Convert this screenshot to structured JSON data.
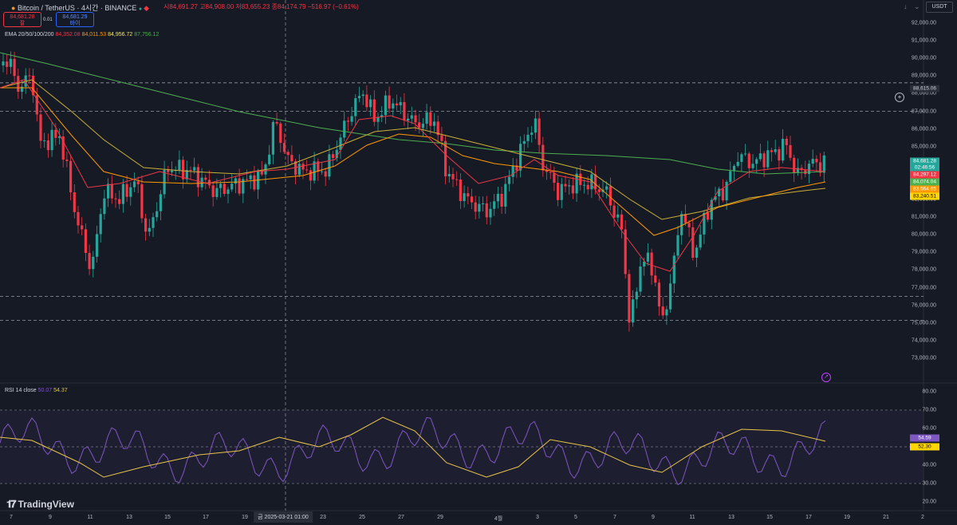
{
  "header": {
    "title": "Bitcoin / TetherUS · 4시간 · BINANCE",
    "ohlc_open": "시84,691.27",
    "ohlc_high": "고84,908.00",
    "ohlc_low": "저83,655.23",
    "ohlc_close": "종84,174.79",
    "change": "−516.97 (−0.61%)",
    "sell_price": "84,681.28",
    "sell_label": "팔",
    "buy_price": "84,681.29",
    "buy_label": "바이",
    "spread": "0.01",
    "currency": "USDT"
  },
  "indicators": {
    "ema_label": "EMA 20/50/100/200",
    "ema20": "84,352.08",
    "ema50": "84,011.53",
    "ema100": "84,956.72",
    "ema200": "87,756.12",
    "rsi_label": "RSI 14 close",
    "rsi_value": "50.07",
    "rsi_ma": "54.37"
  },
  "price_axis": [
    "92,000.00",
    "91,000.00",
    "90,000.00",
    "89,000.00",
    "88,000.00",
    "87,000.00",
    "86,000.00",
    "85,000.00",
    "84,000.00",
    "83,000.00",
    "82,000.00",
    "81,000.00",
    "80,000.00",
    "79,000.00",
    "78,000.00",
    "77,000.00",
    "76,000.00",
    "75,000.00",
    "74,000.00",
    "73,000.00"
  ],
  "rsi_axis": [
    "80.00",
    "70.00",
    "60.00",
    "50.00",
    "40.00",
    "30.00",
    "20.00"
  ],
  "price_tags": {
    "crosshair": "88,615.06",
    "last": "84,681.28",
    "countdown": "02:46:56",
    "ema20": "84,297.12",
    "ema50": "84,074.04",
    "ema100": "83,564.65",
    "ema200": "83,240.51",
    "rsi": "54.59",
    "rsi_ma": "52.30"
  },
  "time_axis": [
    "7",
    "9",
    "11",
    "13",
    "15",
    "17",
    "19",
    "금 2025-03-21  01:00",
    "23",
    "25",
    "27",
    "29",
    "4월",
    "3",
    "5",
    "7",
    "9",
    "11",
    "13",
    "15",
    "17",
    "19",
    "21",
    "2"
  ],
  "branding": {
    "logo_text": "TradingView"
  },
  "colors": {
    "up": "#26a69a",
    "down": "#f23645",
    "ema20": "#f23645",
    "ema50": "#ff9800",
    "ema100": "#c9b037",
    "ema200": "#4caf50",
    "rsi": "#7e57c2",
    "rsi_ma": "#e8c547",
    "background": "#161a25"
  }
}
